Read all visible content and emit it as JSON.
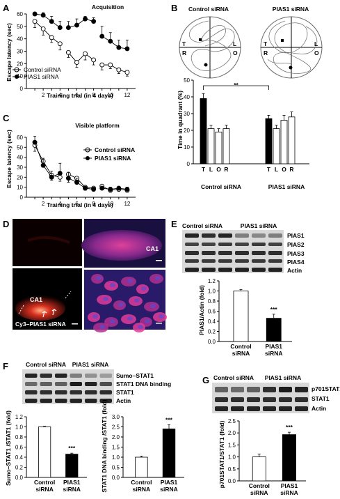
{
  "panel_letters": {
    "a": "A",
    "b": "B",
    "c": "C",
    "d": "D",
    "e": "E",
    "f": "F",
    "g": "G"
  },
  "panelA": {
    "title": "Acquisition",
    "ylabel": "Escape latency (sec)",
    "xlabel": "Training trial (in 4 days)",
    "legend": [
      "Control siRNA",
      "PIAS1 siRNA"
    ]
  },
  "panelB": {
    "maze_labels": [
      "Control siRNA",
      "PIAS1 siRNA"
    ],
    "quadrant_letters": [
      "T",
      "L",
      "R",
      "O"
    ],
    "ylabel": "Time in quadrant (%)",
    "bar_letters": [
      "T",
      "L",
      "O",
      "R"
    ],
    "groups": [
      "Control siRNA",
      "PIAS1 siRNA"
    ],
    "significance": "**"
  },
  "panelC": {
    "title": "Visible platform",
    "ylabel": "Escape latency (sec)",
    "xlabel": "Training trial (in 4 days)",
    "legend": [
      "Control siRNA",
      "PIAS1 siRNA"
    ]
  },
  "panelD": {
    "labels": [
      "CA1",
      "CA1",
      "Cy3–PIAS1 siRNA"
    ]
  },
  "panelE": {
    "lane_labels": [
      "Control siRNA",
      "PIAS1 siRNA"
    ],
    "blot_labels": [
      "PIAS1",
      "PIAS2",
      "PIAS3",
      "PIAS4",
      "Actin"
    ],
    "ylabel": "PIAS1/Actin (fold)",
    "categories": [
      "Control siRNA",
      "PIAS1 siRNA"
    ],
    "significance": "***"
  },
  "panelF": {
    "lane_labels": [
      "Control siRNA",
      "PIAS1 siRNA"
    ],
    "blot_labels": [
      "Sumo–STAT1",
      "STAT1 DNA binding",
      "STAT1",
      "Actin"
    ],
    "ylabel1": "Sumo–STAT1 /STAT1 (fold)",
    "ylabel2": "STAT1 DNA binding /STAT1 (fold)",
    "categories": [
      "Control siRNA",
      "PIAS1 siRNA"
    ],
    "significance": "***"
  },
  "panelG": {
    "lane_labels": [
      "Control siRNA",
      "PIAS1 siRNA"
    ],
    "blot_labels": [
      "p701STAT1",
      "STAT1",
      "Actin"
    ],
    "ylabel": "p701STAT1/STAT1 (fold)",
    "categories": [
      "Control siRNA",
      "PIAS1 siRNA"
    ],
    "significance": "***"
  },
  "chart_data": [
    {
      "id": "A",
      "type": "line",
      "title": "Acquisition",
      "xlabel": "Training trial (in 4 days)",
      "ylabel": "Escape latency (sec)",
      "xlim": [
        0,
        13
      ],
      "ylim": [
        0,
        60
      ],
      "xticks": [
        2,
        4,
        6,
        8,
        10,
        12
      ],
      "yticks": [
        0,
        10,
        20,
        30,
        40,
        50,
        60
      ],
      "x": [
        1,
        2,
        3,
        4,
        5,
        6,
        7,
        8,
        9,
        10,
        11,
        12
      ],
      "series": [
        {
          "name": "Control siRNA",
          "marker": "open",
          "values": [
            54,
            48,
            41,
            36,
            29,
            21,
            28,
            23,
            19,
            19,
            15,
            13
          ],
          "err": [
            5,
            5,
            4,
            5,
            4,
            4,
            5,
            4,
            4,
            3,
            3,
            3
          ]
        },
        {
          "name": "PIAS1 siRNA",
          "marker": "filled",
          "values": [
            60,
            59,
            54,
            49,
            49,
            51,
            56,
            54,
            42,
            38,
            33,
            32
          ],
          "err": [
            0,
            2,
            4,
            5,
            5,
            5,
            2,
            3,
            8,
            7,
            6,
            7
          ]
        }
      ]
    },
    {
      "id": "B",
      "type": "bar",
      "ylabel": "Time in quadrant (%)",
      "ylim": [
        0,
        50
      ],
      "yticks": [
        0,
        10,
        20,
        30,
        40,
        50
      ],
      "groups": [
        "Control siRNA",
        "PIAS1 siRNA"
      ],
      "categories": [
        "T",
        "L",
        "O",
        "R"
      ],
      "series": [
        {
          "group": "Control siRNA",
          "values": [
            39,
            21,
            19,
            21
          ],
          "err": [
            3,
            2,
            2,
            2
          ]
        },
        {
          "group": "PIAS1 siRNA",
          "values": [
            27,
            21,
            26,
            28
          ],
          "err": [
            2,
            2,
            3,
            3
          ]
        }
      ]
    },
    {
      "id": "C",
      "type": "line",
      "title": "Visible platform",
      "xlabel": "Training trial (in 4 days)",
      "ylabel": "Escape latency (sec)",
      "xlim": [
        0,
        13
      ],
      "ylim": [
        0,
        60
      ],
      "xticks": [
        2,
        4,
        6,
        8,
        10,
        12
      ],
      "yticks": [
        0,
        10,
        20,
        30,
        40,
        50,
        60
      ],
      "x": [
        1,
        2,
        3,
        4,
        5,
        6,
        7,
        8,
        9,
        10,
        11,
        12
      ],
      "series": [
        {
          "name": "Control siRNA",
          "marker": "open",
          "values": [
            52,
            36,
            22,
            20,
            23,
            19,
            10,
            9,
            11,
            7,
            8,
            7
          ],
          "err": [
            6,
            6,
            5,
            4,
            8,
            6,
            3,
            3,
            2,
            2,
            2,
            2
          ]
        },
        {
          "name": "PIAS1 siRNA",
          "marker": "filled",
          "values": [
            55,
            32,
            20,
            24,
            19,
            15,
            9,
            8,
            9,
            8,
            9,
            8
          ],
          "err": [
            6,
            7,
            6,
            10,
            6,
            4,
            2,
            2,
            2,
            2,
            2,
            2
          ]
        }
      ]
    },
    {
      "id": "E",
      "type": "bar",
      "ylabel": "PIAS1/Actin (fold)",
      "ylim": [
        0,
        1.2
      ],
      "yticks": [
        0,
        0.2,
        0.4,
        0.6,
        0.8,
        1.0,
        1.2
      ],
      "categories": [
        "Control siRNA",
        "PIAS1 siRNA"
      ],
      "values": [
        1.0,
        0.46
      ],
      "err": [
        0.03,
        0.08
      ]
    },
    {
      "id": "F1",
      "type": "bar",
      "ylabel": "Sumo–STAT1 /STAT1 (fold)",
      "ylim": [
        0,
        1.2
      ],
      "yticks": [
        0,
        0.2,
        0.4,
        0.6,
        0.8,
        1.0,
        1.2
      ],
      "categories": [
        "Control siRNA",
        "PIAS1 siRNA"
      ],
      "values": [
        1.0,
        0.46
      ],
      "err": [
        0.01,
        0.02
      ]
    },
    {
      "id": "F2",
      "type": "bar",
      "ylabel": "STAT1 DNA binding /STAT1 (fold)",
      "ylim": [
        0,
        3.0
      ],
      "yticks": [
        0,
        0.5,
        1.0,
        1.5,
        2.0,
        2.5,
        3.0
      ],
      "categories": [
        "Control siRNA",
        "PIAS1 siRNA"
      ],
      "values": [
        1.0,
        2.4
      ],
      "err": [
        0.05,
        0.2
      ]
    },
    {
      "id": "G",
      "type": "bar",
      "ylabel": "p701STAT1/STAT1 (fold)",
      "ylim": [
        0,
        2.5
      ],
      "yticks": [
        0,
        0.5,
        1.0,
        1.5,
        2.0,
        2.5
      ],
      "categories": [
        "Control siRNA",
        "PIAS1 siRNA"
      ],
      "values": [
        1.0,
        1.93
      ],
      "err": [
        0.12,
        0.1
      ]
    }
  ]
}
